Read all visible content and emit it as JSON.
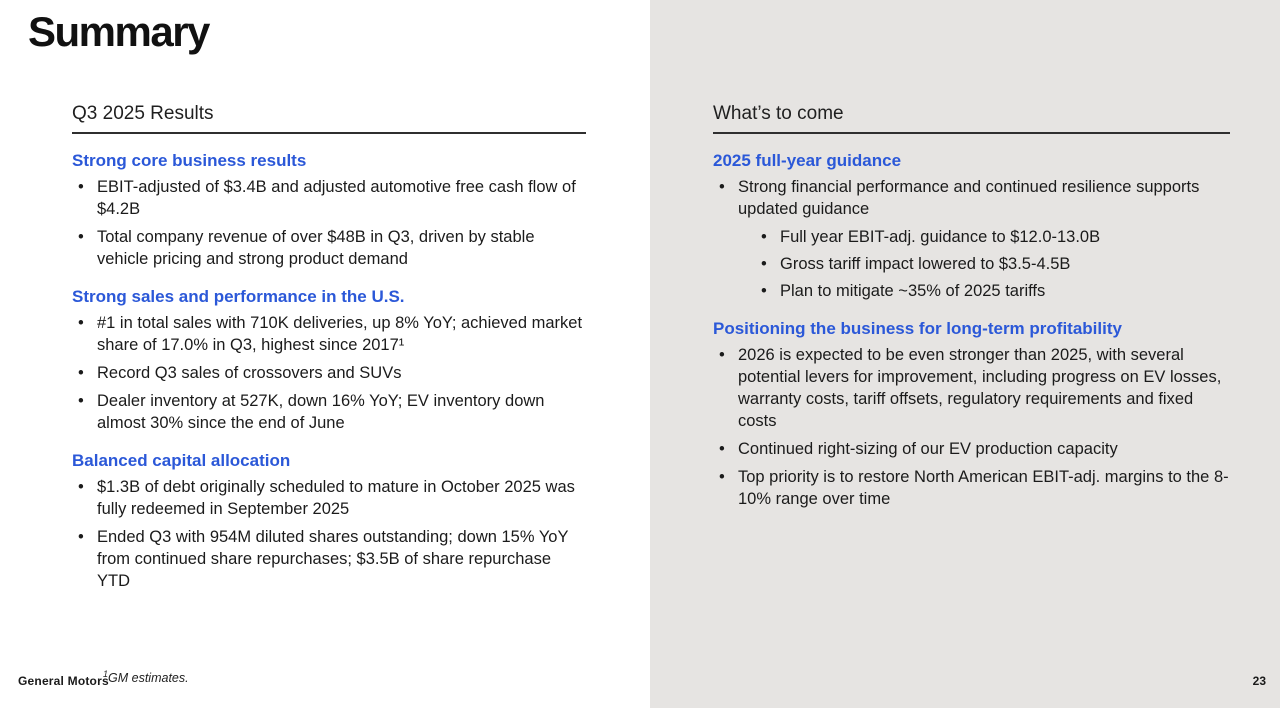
{
  "slide": {
    "title": "Summary",
    "page_number": "23",
    "footer_brand": "General Motors",
    "footnote_marker": "1",
    "footnote_text": "GM estimates.",
    "accent_blue": "#2B58D8",
    "panel_gray": "#E6E4E2"
  },
  "left_column": {
    "header": "Q3 2025 Results",
    "sections": [
      {
        "heading": "Strong core business results",
        "bullets": [
          {
            "text": "EBIT-adjusted of $3.4B and adjusted automotive free cash flow of $4.2B",
            "level": 1
          },
          {
            "text": "Total company revenue of over $48B in Q3, driven by stable vehicle pricing and strong product demand",
            "level": 1
          }
        ]
      },
      {
        "heading": "Strong sales and performance in the U.S.",
        "bullets": [
          {
            "text": "#1 in total sales with 710K deliveries, up 8% YoY; achieved market share of 17.0% in Q3, highest since 2017¹",
            "level": 1
          },
          {
            "text": "Record Q3 sales of crossovers and SUVs",
            "level": 1
          },
          {
            "text": "Dealer inventory at 527K, down 16% YoY; EV inventory down almost 30% since the end of June",
            "level": 1
          }
        ]
      },
      {
        "heading": "Balanced capital allocation",
        "bullets": [
          {
            "text": "$1.3B of debt originally scheduled to mature in October 2025 was fully redeemed in September 2025",
            "level": 1
          },
          {
            "text": "Ended Q3 with 954M diluted shares outstanding; down 15% YoY from continued share repurchases; $3.5B of share repurchase YTD",
            "level": 1
          }
        ]
      }
    ]
  },
  "right_column": {
    "header": "What’s to come",
    "sections": [
      {
        "heading": "2025 full-year guidance",
        "bullets": [
          {
            "text": "Strong financial performance and continued resilience supports updated guidance",
            "level": 1
          },
          {
            "text": "Full year EBIT-adj. guidance to $12.0-13.0B",
            "level": 2
          },
          {
            "text": "Gross tariff impact lowered to $3.5-4.5B",
            "level": 2
          },
          {
            "text": "Plan to mitigate ~35% of 2025 tariffs",
            "level": 2
          }
        ]
      },
      {
        "heading": "Positioning the business for long-term profitability",
        "bullets": [
          {
            "text": "2026 is expected to be even stronger than 2025, with several potential levers for improvement, including progress on EV losses, warranty costs, tariff offsets, regulatory requirements and fixed costs",
            "level": 1
          },
          {
            "text": "Continued right-sizing of our EV production capacity",
            "level": 1
          },
          {
            "text": "Top priority is to restore North American EBIT-adj. margins to the 8-10% range over time",
            "level": 1
          }
        ]
      }
    ]
  }
}
